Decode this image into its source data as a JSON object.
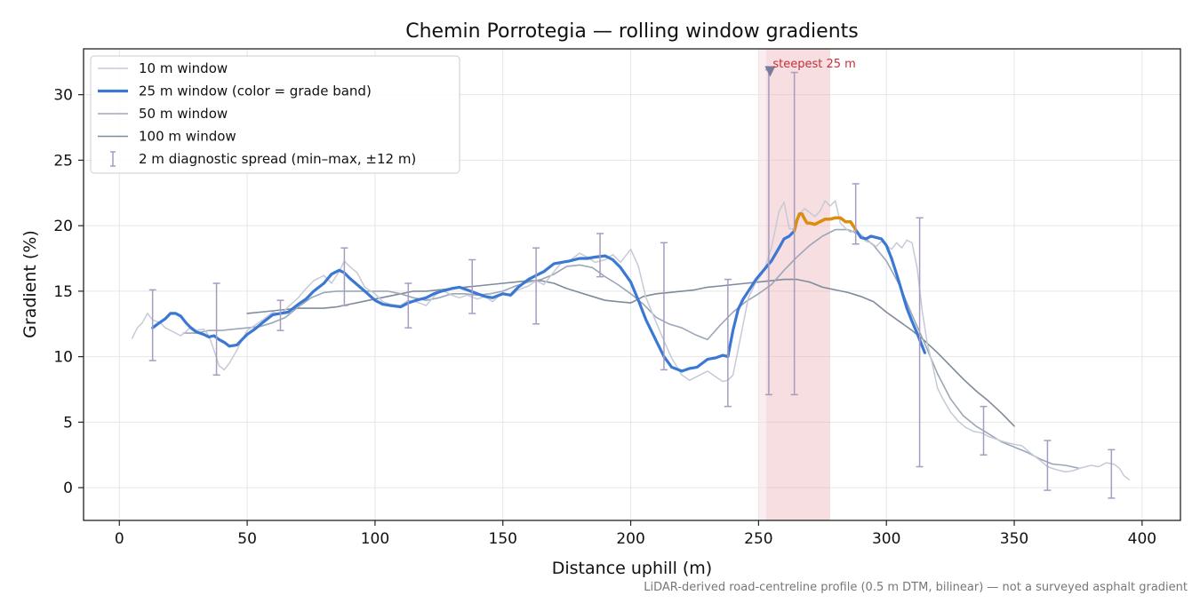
{
  "chart_data": {
    "type": "line",
    "title": "Chemin Porrotegia — rolling window gradients",
    "xlabel": "Distance uphill (m)",
    "ylabel": "Gradient (%)",
    "xlim": [
      -14,
      415
    ],
    "ylim": [
      -2.5,
      33.5
    ],
    "xticks": [
      0,
      50,
      100,
      150,
      200,
      250,
      300,
      350,
      400
    ],
    "yticks": [
      0,
      5,
      10,
      15,
      20,
      25,
      30
    ],
    "grid": true,
    "legend_position": "top-left",
    "footnote": "LiDAR-derived road-centreline profile (0.5 m DTM, bilinear) — not a surveyed asphalt gradient",
    "colors": {
      "w10": "#c5cad6",
      "w25": "#3a78d4",
      "w25_steep": "#e08c0b",
      "w50": "#9ba7b8",
      "w100": "#7f8a9b",
      "errorbar": "#a79cc0",
      "highlight": "#e8a9b0",
      "marker": "#7b7c9c",
      "annotation": "#c4303b"
    },
    "legend": [
      {
        "key": "w10",
        "label": "10 m window"
      },
      {
        "key": "w25",
        "label": "25 m window (color = grade band)"
      },
      {
        "key": "w50",
        "label": "50 m window"
      },
      {
        "key": "w100",
        "label": "100 m window"
      },
      {
        "key": "err",
        "label": "2 m diagnostic spread (min–max, ±12 m)"
      }
    ],
    "steepest": {
      "label": "steepest 25 m",
      "x_start": 253,
      "x_end": 278,
      "marker_x": 254.5,
      "marker_y": 31.7
    },
    "series": [
      {
        "key": "w10",
        "name": "10 m window",
        "x": [
          5,
          7,
          9,
          11,
          13,
          16,
          18,
          20,
          22,
          24,
          26,
          28,
          30,
          33,
          35,
          37,
          39,
          41,
          43,
          46,
          48,
          50,
          53,
          56,
          60,
          63,
          66,
          70,
          73,
          76,
          80,
          83,
          86,
          88,
          90,
          93,
          96,
          100,
          103,
          106,
          110,
          113,
          116,
          120,
          123,
          126,
          130,
          133,
          136,
          140,
          143,
          146,
          150,
          153,
          156,
          160,
          163,
          166,
          170,
          173,
          176,
          180,
          183,
          186,
          190,
          193,
          196,
          200,
          203,
          206,
          210,
          213,
          216,
          220,
          223,
          226,
          230,
          233,
          236,
          238,
          240,
          243,
          246,
          249,
          252,
          255,
          258,
          260,
          262,
          264,
          266,
          268,
          270,
          272,
          274,
          276,
          278,
          280,
          282,
          284,
          286,
          288,
          290,
          292,
          294,
          296,
          298,
          300,
          302,
          304,
          306,
          308,
          310,
          312,
          314,
          316,
          318,
          320,
          322,
          325,
          328,
          331,
          334,
          337,
          340,
          343,
          346,
          350,
          353,
          356,
          360,
          363,
          366,
          370,
          373,
          376,
          380,
          383,
          386,
          389,
          391,
          393,
          395
        ],
        "y": [
          11.4,
          12.2,
          12.6,
          13.3,
          12.8,
          12.6,
          12.2,
          12.0,
          11.8,
          11.6,
          11.9,
          12.3,
          12.0,
          12.1,
          11.6,
          10.5,
          9.3,
          9.0,
          9.5,
          10.5,
          11.3,
          12.0,
          12.4,
          12.8,
          13.4,
          13.2,
          13.8,
          14.5,
          15.2,
          15.8,
          16.2,
          15.6,
          16.5,
          17.3,
          16.9,
          16.4,
          15.3,
          14.8,
          14.2,
          14.0,
          13.9,
          14.3,
          14.2,
          13.9,
          14.6,
          15.1,
          14.7,
          14.5,
          14.7,
          14.4,
          14.6,
          14.2,
          14.9,
          14.6,
          15.1,
          15.4,
          15.8,
          15.5,
          16.5,
          17.2,
          17.3,
          17.9,
          17.6,
          17.2,
          17.4,
          17.8,
          17.2,
          18.2,
          16.9,
          14.5,
          12.6,
          11.2,
          9.9,
          8.6,
          8.2,
          8.5,
          8.9,
          8.5,
          8.1,
          8.2,
          8.6,
          11.5,
          14.5,
          15.7,
          16.5,
          18.3,
          21.1,
          21.8,
          19.8,
          19.7,
          20.9,
          21.3,
          21.0,
          20.7,
          21.1,
          21.9,
          21.5,
          21.9,
          20.2,
          19.8,
          19.5,
          19.7,
          19.3,
          18.8,
          18.7,
          18.4,
          18.8,
          18.5,
          18.2,
          18.7,
          18.3,
          18.9,
          18.7,
          16.8,
          13.5,
          11.0,
          9.4,
          7.6,
          6.8,
          5.8,
          5.1,
          4.6,
          4.3,
          4.2,
          3.9,
          3.7,
          3.5,
          3.3,
          3.2,
          2.7,
          2.1,
          1.6,
          1.4,
          1.2,
          1.3,
          1.5,
          1.7,
          1.6,
          1.9,
          1.8,
          1.5,
          0.9,
          0.6
        ]
      },
      {
        "key": "w25",
        "name": "25 m window (color = grade band)",
        "x": [
          13,
          15,
          18,
          20,
          22,
          24,
          26,
          28,
          30,
          33,
          35,
          37,
          39,
          41,
          43,
          46,
          48,
          50,
          53,
          56,
          60,
          63,
          66,
          70,
          73,
          76,
          80,
          83,
          86,
          88,
          90,
          93,
          96,
          100,
          103,
          106,
          110,
          113,
          116,
          120,
          123,
          126,
          130,
          133,
          136,
          140,
          143,
          146,
          150,
          153,
          156,
          160,
          163,
          166,
          170,
          173,
          176,
          180,
          183,
          186,
          190,
          193,
          196,
          200,
          203,
          206,
          210,
          213,
          216,
          220,
          223,
          226,
          230,
          233,
          236,
          238,
          240,
          242,
          244,
          246,
          249,
          252,
          255,
          258,
          260,
          262,
          264,
          265,
          266,
          267,
          268,
          269,
          270,
          272,
          274,
          276,
          278,
          280,
          282,
          284,
          286,
          288,
          290,
          292,
          294,
          296,
          298,
          300,
          302,
          304,
          306,
          308,
          310,
          312,
          314,
          315
        ],
        "y": [
          12.2,
          12.5,
          12.9,
          13.3,
          13.3,
          13.1,
          12.6,
          12.2,
          11.9,
          11.7,
          11.5,
          11.6,
          11.3,
          11.1,
          10.8,
          10.9,
          11.3,
          11.7,
          12.1,
          12.6,
          13.2,
          13.3,
          13.4,
          14.0,
          14.4,
          15.0,
          15.6,
          16.3,
          16.6,
          16.4,
          16.0,
          15.5,
          15.0,
          14.3,
          14.0,
          13.9,
          13.8,
          14.1,
          14.3,
          14.5,
          14.8,
          15.0,
          15.2,
          15.3,
          15.1,
          14.8,
          14.6,
          14.5,
          14.8,
          14.7,
          15.3,
          15.9,
          16.2,
          16.5,
          17.1,
          17.2,
          17.3,
          17.5,
          17.5,
          17.6,
          17.7,
          17.4,
          16.8,
          15.7,
          14.3,
          12.8,
          11.2,
          10.0,
          9.2,
          8.9,
          9.1,
          9.2,
          9.8,
          9.9,
          10.1,
          10.0,
          12.0,
          13.6,
          14.4,
          15.0,
          15.9,
          16.6,
          17.3,
          18.3,
          19.0,
          19.2,
          19.6,
          20.4,
          20.9,
          20.9,
          20.5,
          20.2,
          20.2,
          20.1,
          20.3,
          20.5,
          20.5,
          20.6,
          20.6,
          20.3,
          20.3,
          19.7,
          19.1,
          19.0,
          19.2,
          19.1,
          19.0,
          18.5,
          17.5,
          16.3,
          15.0,
          13.7,
          12.7,
          11.8,
          10.8,
          10.3
        ]
      },
      {
        "key": "w50",
        "name": "50 m window",
        "x": [
          25,
          30,
          35,
          40,
          45,
          50,
          55,
          60,
          65,
          70,
          75,
          80,
          85,
          90,
          95,
          100,
          105,
          110,
          115,
          120,
          125,
          130,
          135,
          140,
          145,
          150,
          155,
          160,
          165,
          170,
          175,
          180,
          185,
          190,
          195,
          200,
          205,
          210,
          215,
          220,
          225,
          230,
          235,
          240,
          245,
          250,
          255,
          260,
          265,
          270,
          275,
          280,
          285,
          290,
          295,
          300,
          305,
          310,
          315,
          320,
          325,
          330,
          335,
          340,
          345,
          350,
          355,
          360,
          365,
          370,
          375
        ],
        "y": [
          11.8,
          11.8,
          12.0,
          12.0,
          12.1,
          12.2,
          12.3,
          12.6,
          13.0,
          13.8,
          14.5,
          14.9,
          15.0,
          15.0,
          15.0,
          15.0,
          15.0,
          14.8,
          14.5,
          14.3,
          14.5,
          14.8,
          14.8,
          14.7,
          14.8,
          15.0,
          15.4,
          15.7,
          15.9,
          16.3,
          16.9,
          17.0,
          16.8,
          16.1,
          15.5,
          14.8,
          14.0,
          13.0,
          12.5,
          12.2,
          11.7,
          11.3,
          12.4,
          13.4,
          14.2,
          14.8,
          15.5,
          16.6,
          17.6,
          18.5,
          19.2,
          19.7,
          19.7,
          19.3,
          18.5,
          17.3,
          15.5,
          13.2,
          11.0,
          8.7,
          6.8,
          5.5,
          4.7,
          4.1,
          3.5,
          3.1,
          2.7,
          2.2,
          1.8,
          1.7,
          1.5
        ]
      },
      {
        "key": "w100",
        "name": "100 m window",
        "x": [
          50,
          55,
          60,
          65,
          70,
          75,
          80,
          85,
          90,
          95,
          100,
          105,
          110,
          115,
          120,
          125,
          130,
          135,
          140,
          145,
          150,
          155,
          160,
          165,
          170,
          175,
          180,
          185,
          190,
          195,
          200,
          205,
          210,
          215,
          220,
          225,
          230,
          235,
          240,
          245,
          250,
          255,
          260,
          265,
          270,
          275,
          280,
          285,
          290,
          295,
          300,
          305,
          310,
          315,
          320,
          325,
          330,
          335,
          340,
          345,
          350
        ],
        "y": [
          13.3,
          13.4,
          13.5,
          13.6,
          13.7,
          13.7,
          13.7,
          13.8,
          14.0,
          14.2,
          14.4,
          14.6,
          14.8,
          15.0,
          15.0,
          15.1,
          15.2,
          15.3,
          15.4,
          15.5,
          15.6,
          15.7,
          15.8,
          15.8,
          15.6,
          15.2,
          14.9,
          14.6,
          14.3,
          14.2,
          14.1,
          14.6,
          14.8,
          14.9,
          15.0,
          15.1,
          15.3,
          15.4,
          15.5,
          15.6,
          15.7,
          15.8,
          15.9,
          15.9,
          15.7,
          15.3,
          15.1,
          14.9,
          14.6,
          14.2,
          13.4,
          12.7,
          12.0,
          11.2,
          10.3,
          9.3,
          8.3,
          7.4,
          6.6,
          5.7,
          4.7
        ]
      }
    ],
    "steep_segment_range": [
      264,
      288
    ],
    "error_bars": {
      "name": "2 m diagnostic spread (min–max, ±12 m)",
      "x": [
        13,
        38,
        63,
        88,
        113,
        138,
        163,
        188,
        213,
        238,
        254,
        264,
        288,
        313,
        338,
        363,
        388
      ],
      "ymin": [
        9.7,
        8.6,
        12.0,
        13.9,
        12.2,
        13.3,
        12.5,
        16.1,
        9.0,
        6.2,
        7.1,
        7.1,
        18.6,
        1.6,
        2.5,
        -0.2,
        -0.8
      ],
      "ymax": [
        15.1,
        15.6,
        14.3,
        18.3,
        15.6,
        17.4,
        18.3,
        19.4,
        18.7,
        15.9,
        31.9,
        31.7,
        23.2,
        20.6,
        6.2,
        3.6,
        2.9
      ]
    }
  }
}
